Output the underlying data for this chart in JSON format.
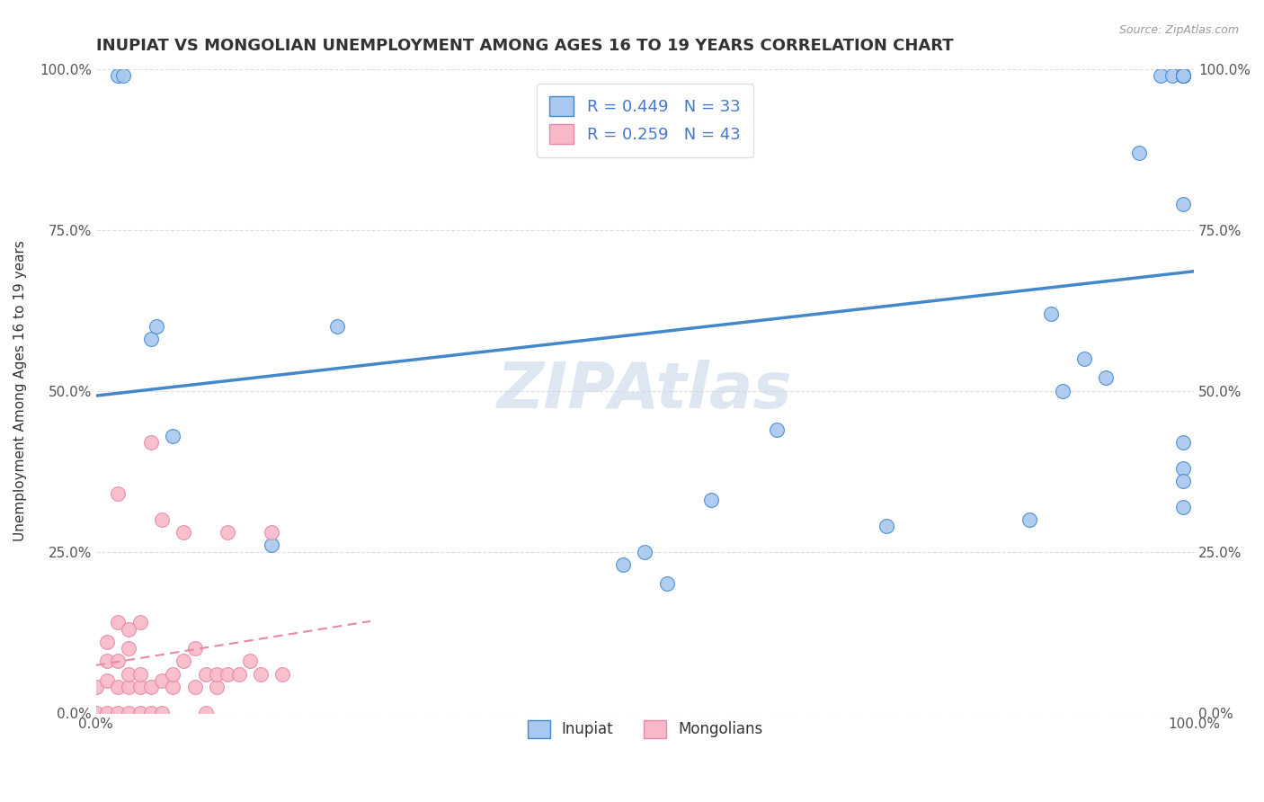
{
  "title": "INUPIAT VS MONGOLIAN UNEMPLOYMENT AMONG AGES 16 TO 19 YEARS CORRELATION CHART",
  "source": "Source: ZipAtlas.com",
  "ylabel": "Unemployment Among Ages 16 to 19 years",
  "xlim": [
    0,
    1
  ],
  "ylim": [
    0,
    1
  ],
  "ytick_positions": [
    0,
    0.25,
    0.5,
    0.75,
    1.0
  ],
  "xtick_positions": [
    0,
    0.125,
    0.25,
    0.375,
    0.5,
    0.625,
    0.75,
    0.875,
    1.0
  ],
  "inupiat_color": "#a8c8f0",
  "mongolian_color": "#f8b8c8",
  "line_color_inupiat": "#4488cc",
  "line_color_mongolian": "#e888a8",
  "watermark_color": "#c8d8e8",
  "R_inupiat": 0.449,
  "N_inupiat": 33,
  "R_mongolian": 0.259,
  "N_mongolian": 43,
  "inupiat_x": [
    0.02,
    0.025,
    0.05,
    0.055,
    0.07,
    0.16,
    0.22,
    0.48,
    0.5,
    0.52,
    0.56,
    0.62,
    0.72,
    0.85,
    0.87,
    0.88,
    0.9,
    0.92,
    0.95,
    0.97,
    0.98,
    0.99,
    0.99,
    0.99,
    0.99,
    0.99,
    0.99,
    0.99,
    0.99,
    0.99,
    0.99,
    0.99,
    0.99
  ],
  "inupiat_y": [
    0.99,
    0.99,
    0.58,
    0.6,
    0.43,
    0.26,
    0.6,
    0.23,
    0.25,
    0.2,
    0.33,
    0.44,
    0.29,
    0.3,
    0.62,
    0.5,
    0.55,
    0.52,
    0.87,
    0.99,
    0.99,
    0.99,
    0.99,
    0.99,
    0.99,
    0.99,
    0.99,
    0.99,
    0.42,
    0.38,
    0.36,
    0.32,
    0.79
  ],
  "mongolian_x": [
    0.0,
    0.0,
    0.01,
    0.01,
    0.01,
    0.01,
    0.02,
    0.02,
    0.02,
    0.02,
    0.03,
    0.03,
    0.03,
    0.03,
    0.03,
    0.04,
    0.04,
    0.04,
    0.04,
    0.05,
    0.05,
    0.05,
    0.06,
    0.06,
    0.06,
    0.07,
    0.07,
    0.08,
    0.08,
    0.09,
    0.09,
    0.1,
    0.1,
    0.11,
    0.11,
    0.12,
    0.12,
    0.13,
    0.14,
    0.15,
    0.16,
    0.17,
    0.02
  ],
  "mongolian_y": [
    0.0,
    0.04,
    0.0,
    0.05,
    0.08,
    0.11,
    0.0,
    0.04,
    0.08,
    0.14,
    0.0,
    0.04,
    0.06,
    0.1,
    0.13,
    0.0,
    0.04,
    0.06,
    0.14,
    0.0,
    0.04,
    0.42,
    0.0,
    0.05,
    0.3,
    0.04,
    0.06,
    0.08,
    0.28,
    0.04,
    0.1,
    0.0,
    0.06,
    0.04,
    0.06,
    0.06,
    0.28,
    0.06,
    0.08,
    0.06,
    0.28,
    0.06,
    0.34
  ]
}
